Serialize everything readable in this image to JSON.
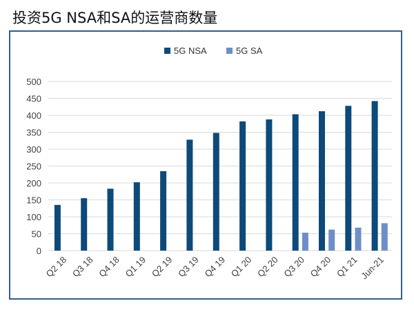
{
  "page": {
    "title": "投资5G NSA和SA的运营商数量"
  },
  "colors": {
    "nsa": "#0d4a7a",
    "sa": "#6f8ec7",
    "grid": "#d9d9d9",
    "frame": "#2f5f86"
  },
  "chart_data": {
    "type": "bar",
    "title": "",
    "xlabel": "",
    "ylabel": "",
    "categories": [
      "Q2 18",
      "Q3 18",
      "Q4 18",
      "Q1 19",
      "Q2 19",
      "Q3 19",
      "Q4 19",
      "Q1 20",
      "Q2 20",
      "Q3 20",
      "Q4 20",
      "Q1 21",
      "Jun-21"
    ],
    "series": [
      {
        "name": "5G NSA",
        "values": [
          135,
          155,
          183,
          202,
          235,
          328,
          348,
          382,
          388,
          403,
          412,
          428,
          442
        ]
      },
      {
        "name": "5G SA",
        "values": [
          null,
          null,
          null,
          null,
          null,
          null,
          null,
          null,
          null,
          53,
          62,
          68,
          81
        ]
      }
    ],
    "ylim": [
      0,
      500
    ],
    "yticks": [
      "0",
      "50",
      "100",
      "150",
      "200",
      "250",
      "300",
      "350",
      "400",
      "450",
      "500"
    ],
    "grid": true,
    "legend_position": "top-center"
  }
}
